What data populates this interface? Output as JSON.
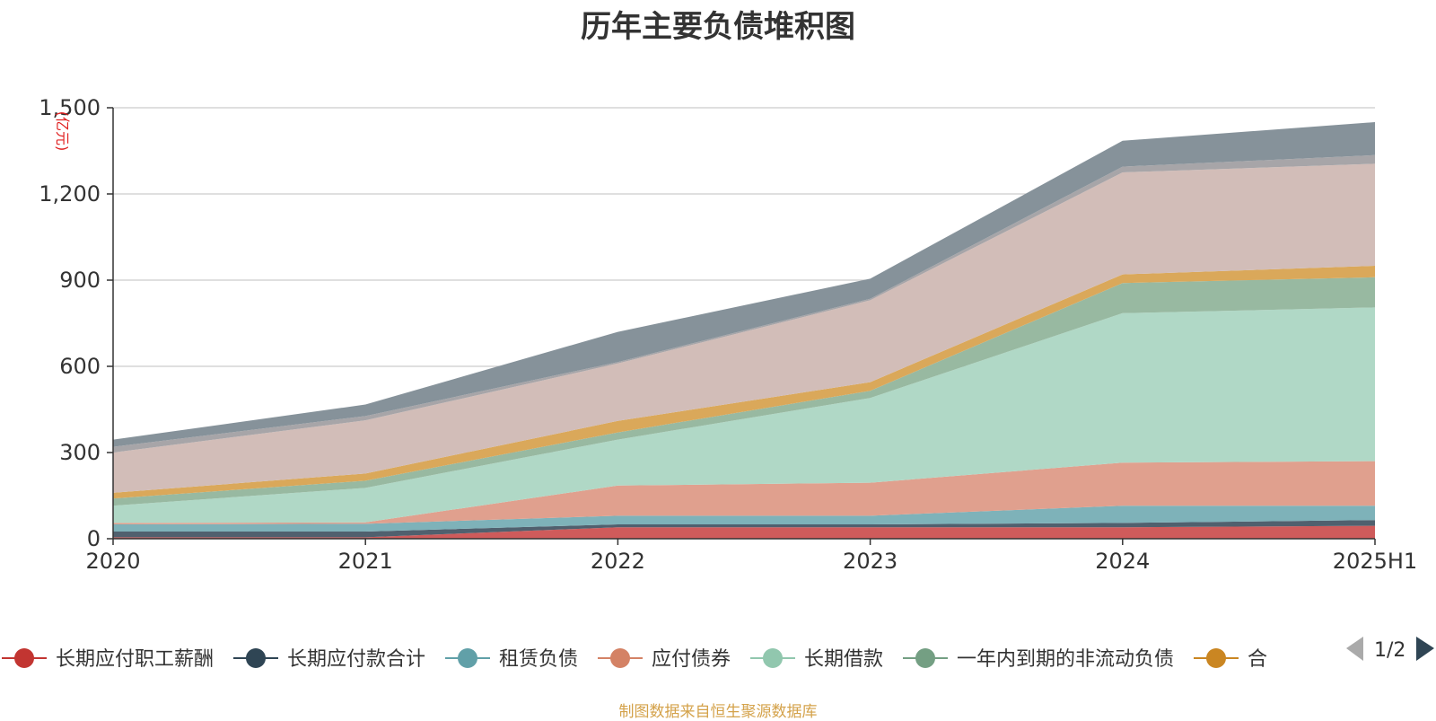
{
  "chart_data": {
    "type": "area",
    "title": "历年主要负债堆积图",
    "unit_label": "(亿元)",
    "source": "制图数据来自恒生聚源数据库",
    "x": [
      "2020",
      "2021",
      "2022",
      "2023",
      "2024",
      "2025H1"
    ],
    "ylim": [
      0,
      1500
    ],
    "yticks": [
      0,
      300,
      600,
      900,
      1200,
      1500
    ],
    "ytick_labels": [
      "0",
      "300",
      "600",
      "900",
      "1,200",
      "1,500"
    ],
    "stacked": true,
    "grid": true,
    "legend_page": "1/2",
    "series": [
      {
        "name": "长期应付职工薪酬",
        "color": "#cf5b5b",
        "legend_color": "#c23531",
        "values": [
          5,
          5,
          40,
          40,
          40,
          45
        ]
      },
      {
        "name": "长期应付款合计",
        "color": "#50606e",
        "legend_color": "#2f4554",
        "values": [
          20,
          20,
          10,
          10,
          15,
          20
        ]
      },
      {
        "name": "租赁负债",
        "color": "#7eb2b9",
        "legend_color": "#61a0a8",
        "values": [
          25,
          27,
          30,
          30,
          60,
          50
        ]
      },
      {
        "name": "应付债券",
        "color": "#e0a08e",
        "legend_color": "#d48265",
        "values": [
          5,
          5,
          105,
          115,
          150,
          155
        ]
      },
      {
        "name": "长期借款",
        "color": "#b0d8c6",
        "legend_color": "#91c7ae",
        "values": [
          60,
          120,
          160,
          295,
          520,
          535
        ]
      },
      {
        "name": "一年内到期的非流动负债",
        "color": "#98b9a1",
        "legend_color": "#749f83",
        "values": [
          25,
          25,
          25,
          25,
          105,
          105
        ]
      },
      {
        "name": "合",
        "color": "#daa85a",
        "legend_color": "#ca8622",
        "values": [
          20,
          25,
          40,
          30,
          30,
          40
        ]
      },
      {
        "name": "",
        "color": "#d2bdb8",
        "legend_color": "#d2bdb8",
        "values": [
          140,
          185,
          200,
          285,
          355,
          355
        ]
      },
      {
        "name": "",
        "color": "#a7a5a8",
        "legend_color": "#a7a5a8",
        "values": [
          20,
          15,
          5,
          5,
          20,
          30
        ]
      },
      {
        "name": "",
        "color": "#86929a",
        "legend_color": "#86929a",
        "values": [
          25,
          40,
          105,
          70,
          90,
          115
        ]
      }
    ]
  }
}
